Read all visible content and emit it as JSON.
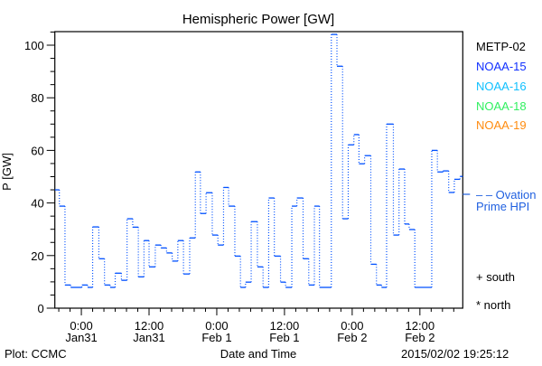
{
  "chart_data": {
    "type": "line",
    "title": "Hemispheric Power [GW]",
    "xlabel": "Date and Time",
    "ylabel": "P [GW]",
    "x_units": "hours since 2015-01-31 00:00 UT",
    "xlim": [
      -4.7,
      67.6
    ],
    "ylim": [
      0,
      105
    ],
    "yticks": [
      0,
      20,
      40,
      60,
      80,
      100
    ],
    "ytick_labels": [
      "0",
      "20",
      "40",
      "60",
      "80",
      "100"
    ],
    "xticks": [
      {
        "x": 0,
        "time": "0:00",
        "date": "Jan31"
      },
      {
        "x": 12,
        "time": "12:00",
        "date": "Jan31"
      },
      {
        "x": 24,
        "time": "0:00",
        "date": "Feb 1"
      },
      {
        "x": 36,
        "time": "12:00",
        "date": "Feb 1"
      },
      {
        "x": 48,
        "time": "0:00",
        "date": "Feb 2"
      },
      {
        "x": 60,
        "time": "12:00",
        "date": "Feb 2"
      }
    ],
    "grid": false,
    "legend": {
      "placement": "right",
      "items": [
        {
          "label": "METP-02",
          "color": "#000000"
        },
        {
          "label": "NOAA-15",
          "color": "#1030ff"
        },
        {
          "label": "NOAA-16",
          "color": "#10c0ff"
        },
        {
          "label": "NOAA-18",
          "color": "#30f060"
        },
        {
          "label": "NOAA-19",
          "color": "#ff8c10"
        }
      ],
      "ovation_label_1": "– – Ovation",
      "ovation_label_2": "Prime HPI",
      "ovation_color": "#2060e0",
      "south_label": "+ south",
      "north_label": "* north"
    },
    "series": [
      {
        "name": "Hemispheric Power (step)",
        "color": "#0050ff",
        "end_x": 67.6,
        "points": [
          [
            -4.7,
            45.0
          ],
          [
            -3.9,
            38.8
          ],
          [
            -2.9,
            8.8
          ],
          [
            -1.9,
            7.9
          ],
          [
            0.1,
            8.8
          ],
          [
            1.1,
            7.9
          ],
          [
            2.0,
            30.9
          ],
          [
            3.1,
            18.8
          ],
          [
            4.1,
            8.8
          ],
          [
            5.1,
            7.9
          ],
          [
            6.0,
            13.3
          ],
          [
            7.1,
            10.6
          ],
          [
            8.1,
            34.0
          ],
          [
            9.1,
            30.8
          ],
          [
            10.1,
            11.9
          ],
          [
            11.1,
            25.7
          ],
          [
            12.0,
            15.7
          ],
          [
            13.1,
            24.0
          ],
          [
            14.1,
            22.9
          ],
          [
            15.1,
            21.0
          ],
          [
            16.1,
            17.9
          ],
          [
            17.1,
            25.7
          ],
          [
            18.1,
            13.0
          ],
          [
            19.2,
            26.7
          ],
          [
            20.2,
            51.8
          ],
          [
            21.1,
            36.0
          ],
          [
            22.1,
            43.9
          ],
          [
            23.2,
            27.8
          ],
          [
            24.2,
            24.0
          ],
          [
            25.2,
            45.9
          ],
          [
            26.1,
            38.8
          ],
          [
            27.2,
            19.8
          ],
          [
            28.2,
            7.9
          ],
          [
            29.1,
            9.9
          ],
          [
            30.1,
            32.9
          ],
          [
            31.2,
            15.7
          ],
          [
            32.2,
            7.9
          ],
          [
            33.2,
            41.9
          ],
          [
            34.2,
            19.8
          ],
          [
            35.3,
            9.9
          ],
          [
            36.2,
            7.9
          ],
          [
            37.3,
            38.8
          ],
          [
            38.2,
            41.9
          ],
          [
            39.3,
            18.8
          ],
          [
            40.3,
            8.8
          ],
          [
            41.3,
            38.8
          ],
          [
            42.2,
            7.9
          ],
          [
            44.3,
            104.1
          ],
          [
            45.3,
            92.0
          ],
          [
            46.3,
            34.0
          ],
          [
            47.3,
            62.1
          ],
          [
            48.3,
            66.0
          ],
          [
            49.2,
            54.9
          ],
          [
            50.2,
            58.0
          ],
          [
            51.3,
            16.7
          ],
          [
            52.3,
            8.8
          ],
          [
            53.2,
            7.9
          ],
          [
            54.1,
            70.0
          ],
          [
            55.3,
            27.8
          ],
          [
            56.3,
            52.9
          ],
          [
            57.3,
            32.0
          ],
          [
            58.1,
            29.9
          ],
          [
            59.1,
            7.9
          ],
          [
            62.1,
            60.0
          ],
          [
            63.1,
            51.8
          ],
          [
            64.1,
            52.2
          ],
          [
            65.1,
            44.0
          ],
          [
            66.1,
            49.0
          ],
          [
            67.1,
            50.1
          ]
        ]
      }
    ],
    "ovation_hpi_value": 43.3
  },
  "footer": {
    "plot_credit": "Plot: CCMC",
    "timestamp": "2015/02/02 19:25:12"
  }
}
